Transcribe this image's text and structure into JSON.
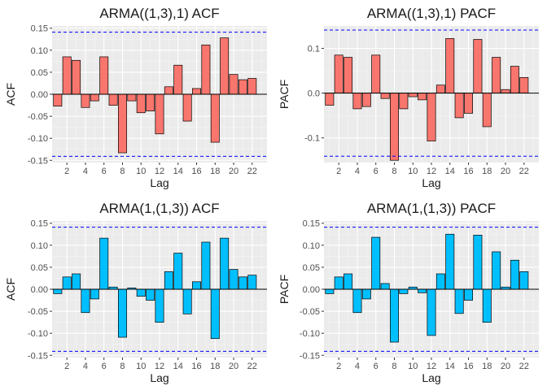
{
  "chart_data": [
    {
      "type": "bar",
      "title": "ARMA((1,3),1) ACF",
      "xlabel": "Lag",
      "ylabel": "ACF",
      "bar_color": "#F8766D",
      "x": [
        1,
        2,
        3,
        4,
        5,
        6,
        7,
        8,
        9,
        10,
        11,
        12,
        13,
        14,
        15,
        16,
        17,
        18,
        19,
        20,
        21,
        22,
        23
      ],
      "values": [
        -0.027,
        0.085,
        0.077,
        -0.03,
        -0.015,
        0.085,
        -0.025,
        -0.133,
        -0.015,
        -0.042,
        -0.038,
        -0.09,
        0.017,
        0.066,
        -0.061,
        0.013,
        0.112,
        -0.109,
        0.128,
        0.045,
        0.033,
        0.036,
        0.0
      ],
      "conf_limit": 0.141,
      "ylim": [
        -0.155,
        0.155
      ],
      "yticks": [
        -0.15,
        -0.1,
        -0.05,
        0.0,
        0.05,
        0.1,
        0.15
      ],
      "ytick_labels": [
        "-0.15",
        "-0.10",
        "-0.05",
        "0.00",
        "0.05",
        "0.10",
        "0.15"
      ],
      "xticks": [
        "2",
        "4",
        "6",
        "8",
        "10",
        "12",
        "14",
        "16",
        "18",
        "20",
        "22"
      ],
      "grid": true
    },
    {
      "type": "bar",
      "title": "ARMA((1,3),1) PACF",
      "xlabel": "Lag",
      "ylabel": "PACF",
      "bar_color": "#F8766D",
      "x": [
        1,
        2,
        3,
        4,
        5,
        6,
        7,
        8,
        9,
        10,
        11,
        12,
        13,
        14,
        15,
        16,
        17,
        18,
        19,
        20,
        21,
        22,
        23
      ],
      "values": [
        -0.027,
        0.085,
        0.08,
        -0.035,
        -0.03,
        0.085,
        -0.012,
        -0.15,
        -0.035,
        -0.008,
        -0.015,
        -0.107,
        0.018,
        0.122,
        -0.055,
        -0.045,
        0.12,
        -0.075,
        0.08,
        0.008,
        0.06,
        0.035,
        0.0
      ],
      "conf_limit": 0.141,
      "ylim": [
        -0.155,
        0.15
      ],
      "yticks": [
        -0.1,
        0.0,
        0.1
      ],
      "ytick_labels": [
        "-0.1",
        "0.0",
        "0.1"
      ],
      "xticks": [
        "2",
        "4",
        "6",
        "8",
        "10",
        "12",
        "14",
        "16",
        "18",
        "20",
        "22"
      ],
      "grid": true
    },
    {
      "type": "bar",
      "title": "ARMA(1,(1,3)) ACF",
      "xlabel": "Lag",
      "ylabel": "ACF",
      "bar_color": "#00BFFF",
      "x": [
        1,
        2,
        3,
        4,
        5,
        6,
        7,
        8,
        9,
        10,
        11,
        12,
        13,
        14,
        15,
        16,
        17,
        18,
        19,
        20,
        21,
        22,
        23
      ],
      "values": [
        -0.01,
        0.028,
        0.035,
        -0.053,
        -0.022,
        0.116,
        0.005,
        -0.109,
        0.003,
        -0.016,
        -0.025,
        -0.075,
        0.04,
        0.082,
        -0.056,
        0.017,
        0.107,
        -0.112,
        0.116,
        0.045,
        0.028,
        0.032,
        0.0
      ],
      "conf_limit": 0.141,
      "ylim": [
        -0.155,
        0.155
      ],
      "yticks": [
        -0.15,
        -0.1,
        -0.05,
        0.0,
        0.05,
        0.1,
        0.15
      ],
      "ytick_labels": [
        "-0.15",
        "-0.10",
        "-0.05",
        "0.00",
        "0.05",
        "0.10",
        "0.15"
      ],
      "xticks": [
        "2",
        "4",
        "6",
        "8",
        "10",
        "12",
        "14",
        "16",
        "18",
        "20",
        "22"
      ],
      "grid": true
    },
    {
      "type": "bar",
      "title": "ARMA(1,(1,3)) PACF",
      "xlabel": "Lag",
      "ylabel": "PACF",
      "bar_color": "#00BFFF",
      "x": [
        1,
        2,
        3,
        4,
        5,
        6,
        7,
        8,
        9,
        10,
        11,
        12,
        13,
        14,
        15,
        16,
        17,
        18,
        19,
        20,
        21,
        22,
        23
      ],
      "values": [
        -0.01,
        0.028,
        0.035,
        -0.053,
        -0.022,
        0.118,
        0.013,
        -0.12,
        -0.01,
        0.005,
        -0.008,
        -0.105,
        0.035,
        0.125,
        -0.055,
        -0.025,
        0.123,
        -0.075,
        0.085,
        0.005,
        0.066,
        0.04,
        0.0
      ],
      "conf_limit": 0.141,
      "ylim": [
        -0.155,
        0.155
      ],
      "yticks": [
        -0.15,
        -0.1,
        -0.05,
        0.0,
        0.05,
        0.1,
        0.15
      ],
      "ytick_labels": [
        "-0.15",
        "-0.10",
        "-0.05",
        "0.00",
        "0.05",
        "0.10",
        "0.15"
      ],
      "xticks": [
        "2",
        "4",
        "6",
        "8",
        "10",
        "12",
        "14",
        "16",
        "18",
        "20",
        "22"
      ],
      "grid": true
    }
  ]
}
